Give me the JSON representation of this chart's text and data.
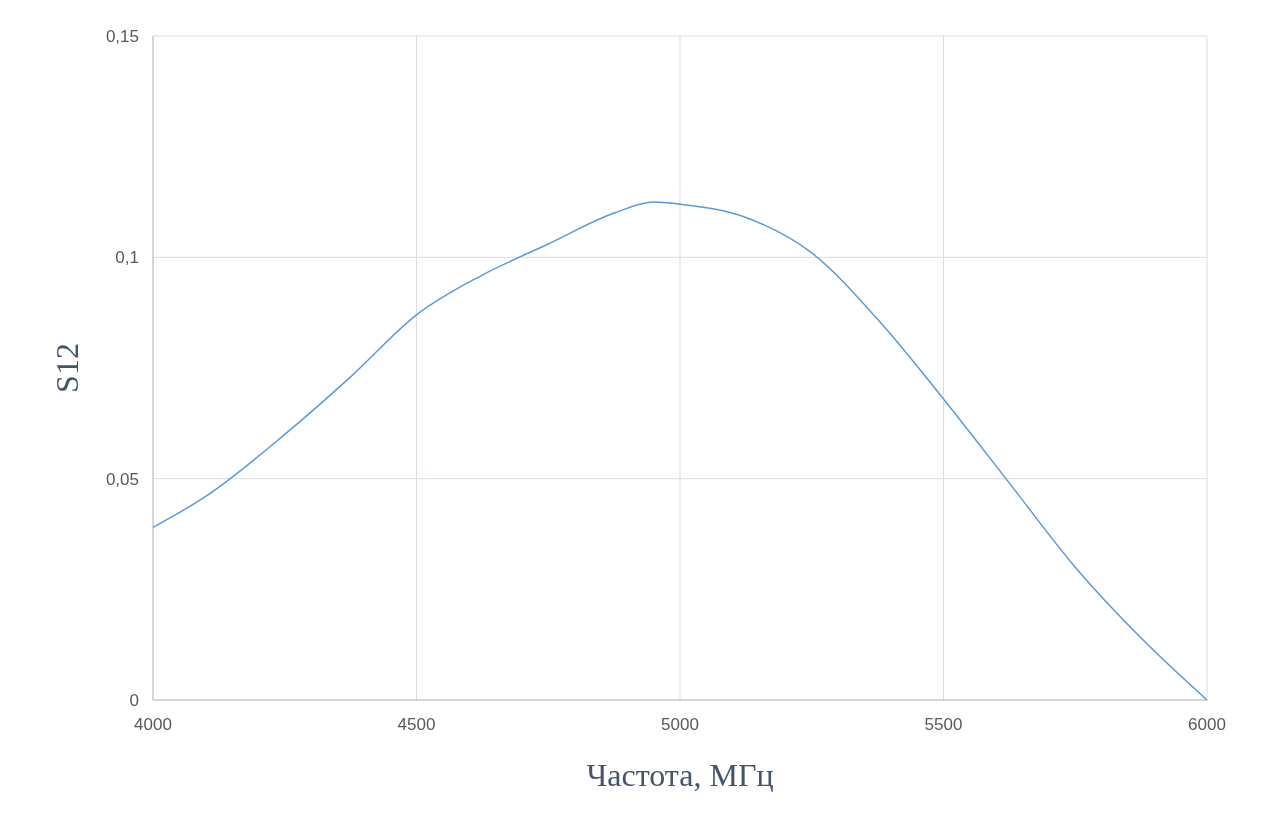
{
  "chart_data": {
    "type": "line",
    "xlabel": "Частота, МГц",
    "ylabel": "S12",
    "xlim": [
      4000,
      6000
    ],
    "xticks": [
      4000,
      4500,
      5000,
      5500,
      6000
    ],
    "ylim": [
      0,
      0.15
    ],
    "yticks": [
      {
        "value": 0,
        "label": "0"
      },
      {
        "value": 0.05,
        "label": "0,05"
      },
      {
        "value": 0.1,
        "label": "0,1"
      },
      {
        "value": 0.15,
        "label": "0,15"
      }
    ],
    "grid": true,
    "x": [
      4000,
      4100,
      4250,
      4375,
      4500,
      4625,
      4750,
      4875,
      4950,
      5000,
      5125,
      5250,
      5375,
      5500,
      5625,
      5750,
      5875,
      6000
    ],
    "series": [
      {
        "color": "#5b9bd5",
        "values": [
          0.039,
          0.046,
          0.06,
          0.073,
          0.087,
          0.096,
          0.103,
          0.11,
          0.1125,
          0.112,
          0.109,
          0.101,
          0.086,
          0.068,
          0.049,
          0.03,
          0.014,
          0
        ]
      }
    ]
  }
}
